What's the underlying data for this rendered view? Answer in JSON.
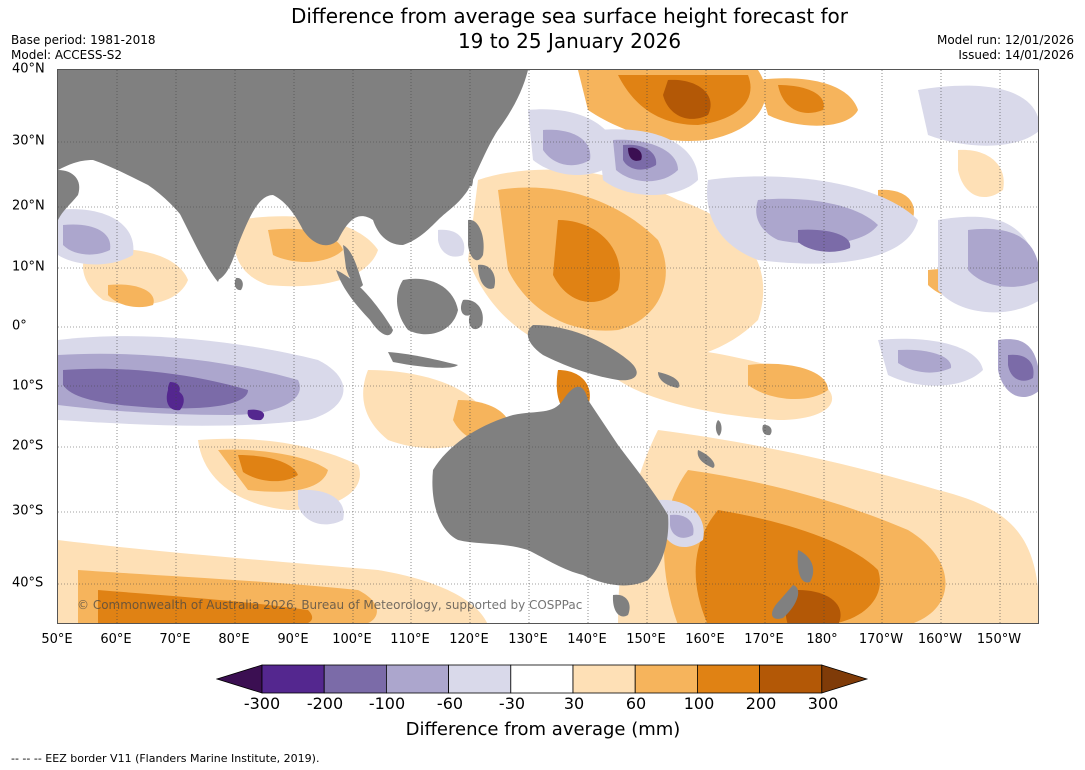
{
  "title_line1": "Difference from average sea surface height forecast for",
  "title_line2": "19 to 25 January 2026",
  "base_period": "Base period: 1981-2018",
  "model": "Model: ACCESS-S2",
  "model_run": "Model run: 12/01/2026",
  "issued": "Issued: 14/01/2026",
  "copyright": "© Commonwealth of Australia 2026, Bureau of Meteorology, supported by COSPPac",
  "footnote": "--  --  -- EEZ border V11 (Flanders Marine Institute, 2019).",
  "lat_labels": [
    "40°N",
    "30°N",
    "20°N",
    "10°N",
    "0°",
    "10°S",
    "20°S",
    "30°S",
    "40°S"
  ],
  "lon_labels": [
    "50°E",
    "60°E",
    "70°E",
    "80°E",
    "90°E",
    "100°E",
    "110°E",
    "120°E",
    "130°E",
    "140°E",
    "150°E",
    "160°E",
    "170°E",
    "180°",
    "170°W",
    "160°W",
    "150°W"
  ],
  "colorbar": {
    "title": "Difference from average (mm)",
    "tick_labels": [
      "-300",
      "-200",
      "-100",
      "-60",
      "-30",
      "30",
      "60",
      "100",
      "200",
      "300"
    ],
    "colors": [
      "#3b0f52",
      "#54278f",
      "#7b6ba8",
      "#aca6cd",
      "#d9d9ea",
      "#ffffff",
      "#fee0b6",
      "#f6b45c",
      "#e08214",
      "#b35806",
      "#7f3b08"
    ]
  }
}
